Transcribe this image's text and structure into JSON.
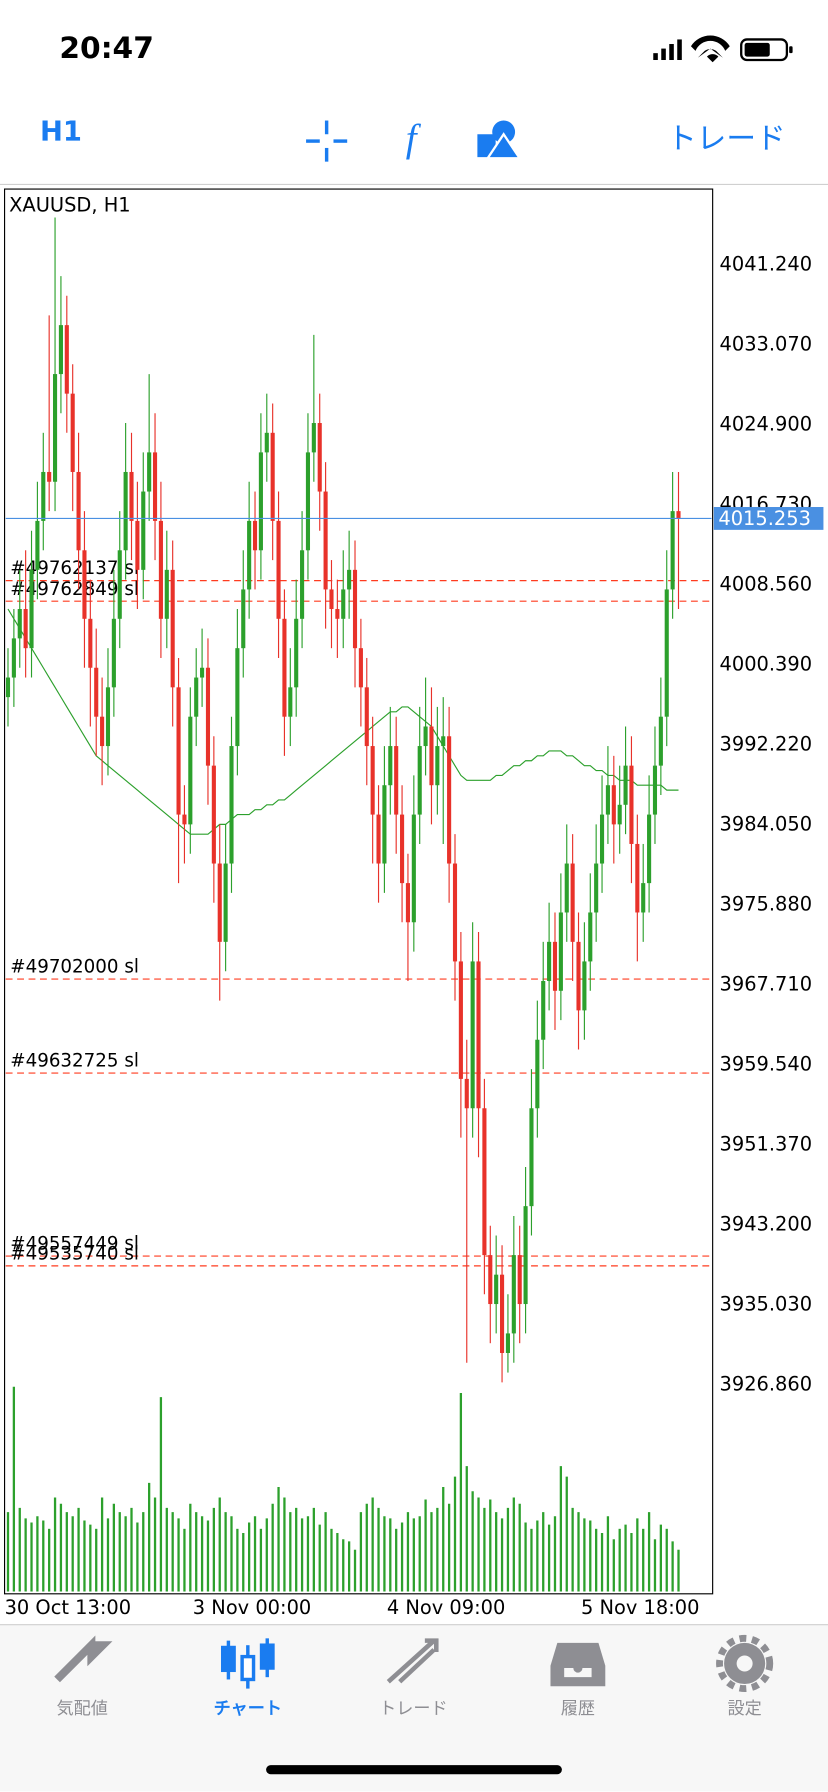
{
  "status_bar": {
    "time": "20:47"
  },
  "toolbar": {
    "timeframe": "H1",
    "trade": "トレード"
  },
  "chart_data": {
    "type": "candlestick",
    "title": "XAUUSD, H1",
    "up_color": "#2ca02c",
    "down_color": "#e8322a",
    "categories": [
      "30 Oct 13:00",
      null,
      null,
      null,
      null,
      null,
      null,
      null,
      null,
      null,
      null,
      null,
      null,
      null,
      null,
      null,
      null,
      null,
      null,
      null,
      null,
      null,
      null,
      null,
      null,
      null,
      null,
      null,
      null,
      null,
      null,
      null,
      "3 Nov 00:00",
      null,
      null,
      null,
      null,
      null,
      null,
      null,
      null,
      null,
      null,
      null,
      null,
      null,
      null,
      null,
      null,
      null,
      null,
      null,
      null,
      null,
      null,
      null,
      null,
      null,
      null,
      null,
      null,
      null,
      null,
      null,
      null,
      "4 Nov 09:00",
      null,
      null,
      null,
      null,
      null,
      null,
      null,
      null,
      null,
      null,
      null,
      null,
      null,
      null,
      null,
      null,
      null,
      null,
      null,
      null,
      null,
      null,
      null,
      null,
      null,
      null,
      null,
      null,
      null,
      null,
      null,
      null,
      "5 Nov 18:00",
      null,
      null,
      null,
      null,
      null,
      null,
      null,
      null,
      null,
      null,
      null,
      null,
      null,
      null,
      null,
      null
    ],
    "ohlc": [
      [
        3997,
        4002,
        3994,
        3999
      ],
      [
        3999,
        4006,
        3996,
        4003
      ],
      [
        4003,
        4010,
        4000,
        4006
      ],
      [
        4006,
        4012,
        3999,
        4002
      ],
      [
        4002,
        4014,
        3999,
        4010
      ],
      [
        4010,
        4019,
        4007,
        4015
      ],
      [
        4015,
        4024,
        4012,
        4020
      ],
      [
        4020,
        4036,
        4016,
        4019
      ],
      [
        4019,
        4046,
        4016,
        4030
      ],
      [
        4030,
        4040,
        4026,
        4035
      ],
      [
        4035,
        4038,
        4024,
        4028
      ],
      [
        4028,
        4031,
        4016,
        4020
      ],
      [
        4020,
        4024,
        4008,
        4012
      ],
      [
        4012,
        4016,
        4000,
        4005
      ],
      [
        4005,
        4009,
        3994,
        4000
      ],
      [
        4000,
        4004,
        3991,
        3995
      ],
      [
        3995,
        3999,
        3988,
        3992
      ],
      [
        3992,
        4002,
        3989,
        3998
      ],
      [
        3998,
        4010,
        3995,
        4005
      ],
      [
        4005,
        4016,
        4002,
        4012
      ],
      [
        4012,
        4025,
        4009,
        4020
      ],
      [
        4020,
        4024,
        4011,
        4015
      ],
      [
        4015,
        4019,
        4006,
        4010
      ],
      [
        4010,
        4022,
        4007,
        4018
      ],
      [
        4018,
        4030,
        4015,
        4022
      ],
      [
        4022,
        4026,
        4011,
        4015
      ],
      [
        4015,
        4019,
        4001,
        4005
      ],
      [
        4005,
        4014,
        4002,
        4010
      ],
      [
        4010,
        4013,
        3994,
        3998
      ],
      [
        3998,
        4001,
        3978,
        3985
      ],
      [
        3985,
        3988,
        3980,
        3984
      ],
      [
        3984,
        3998,
        3981,
        3995
      ],
      [
        3995,
        4002,
        3992,
        3999
      ],
      [
        3999,
        4004,
        3996,
        4000
      ],
      [
        4000,
        4003,
        3986,
        3990
      ],
      [
        3990,
        3993,
        3976,
        3980
      ],
      [
        3980,
        3984,
        3966,
        3972
      ],
      [
        3972,
        3984,
        3969,
        3980
      ],
      [
        3980,
        3995,
        3977,
        3992
      ],
      [
        3992,
        4006,
        3989,
        4002
      ],
      [
        4002,
        4012,
        3999,
        4008
      ],
      [
        4008,
        4019,
        4005,
        4015
      ],
      [
        4015,
        4018,
        4008,
        4012
      ],
      [
        4012,
        4026,
        4009,
        4022
      ],
      [
        4022,
        4028,
        4019,
        4024
      ],
      [
        4024,
        4027,
        4011,
        4015
      ],
      [
        4015,
        4018,
        4001,
        4005
      ],
      [
        4005,
        4008,
        3991,
        3995
      ],
      [
        3995,
        4002,
        3992,
        3998
      ],
      [
        3998,
        4009,
        3995,
        4005
      ],
      [
        4005,
        4016,
        4002,
        4012
      ],
      [
        4012,
        4026,
        4009,
        4022
      ],
      [
        4022,
        4034,
        4019,
        4025
      ],
      [
        4025,
        4028,
        4014,
        4018
      ],
      [
        4018,
        4021,
        4004,
        4008
      ],
      [
        4008,
        4011,
        4002,
        4006
      ],
      [
        4006,
        4009,
        4001,
        4005
      ],
      [
        4005,
        4012,
        4002,
        4008
      ],
      [
        4008,
        4014,
        4005,
        4010
      ],
      [
        4010,
        4013,
        3998,
        4002
      ],
      [
        4002,
        4005,
        3994,
        3998
      ],
      [
        3998,
        4001,
        3988,
        3992
      ],
      [
        3992,
        3995,
        3980,
        3985
      ],
      [
        3985,
        3988,
        3976,
        3980
      ],
      [
        3980,
        3992,
        3977,
        3988
      ],
      [
        3988,
        3996,
        3985,
        3992
      ],
      [
        3992,
        3995,
        3981,
        3985
      ],
      [
        3985,
        3988,
        3974,
        3978
      ],
      [
        3978,
        3981,
        3968,
        3974
      ],
      [
        3974,
        3989,
        3971,
        3985
      ],
      [
        3985,
        3996,
        3982,
        3992
      ],
      [
        3992,
        3999,
        3989,
        3994
      ],
      [
        3994,
        3998,
        3984,
        3988
      ],
      [
        3988,
        3996,
        3985,
        3992
      ],
      [
        3992,
        3997,
        3982,
        3993
      ],
      [
        3993,
        3996,
        3976,
        3980
      ],
      [
        3980,
        3983,
        3966,
        3970
      ],
      [
        3970,
        3973,
        3952,
        3958
      ],
      [
        3958,
        3962,
        3929,
        3955
      ],
      [
        3955,
        3974,
        3952,
        3970
      ],
      [
        3970,
        3973,
        3950,
        3955
      ],
      [
        3955,
        3958,
        3936,
        3940
      ],
      [
        3940,
        3943,
        3931,
        3935
      ],
      [
        3935,
        3942,
        3932,
        3938
      ],
      [
        3938,
        3941,
        3927,
        3930
      ],
      [
        3930,
        3936,
        3928,
        3932
      ],
      [
        3932,
        3944,
        3929,
        3940
      ],
      [
        3940,
        3943,
        3931,
        3935
      ],
      [
        3935,
        3949,
        3932,
        3945
      ],
      [
        3945,
        3959,
        3942,
        3955
      ],
      [
        3955,
        3966,
        3952,
        3962
      ],
      [
        3962,
        3972,
        3959,
        3968
      ],
      [
        3968,
        3976,
        3965,
        3972
      ],
      [
        3972,
        3975,
        3963,
        3967
      ],
      [
        3967,
        3979,
        3964,
        3975
      ],
      [
        3975,
        3984,
        3972,
        3980
      ],
      [
        3980,
        3983,
        3968,
        3972
      ],
      [
        3972,
        3975,
        3961,
        3965
      ],
      [
        3965,
        3974,
        3962,
        3970
      ],
      [
        3970,
        3979,
        3967,
        3975
      ],
      [
        3975,
        3984,
        3972,
        3980
      ],
      [
        3980,
        3989,
        3977,
        3985
      ],
      [
        3985,
        3992,
        3982,
        3988
      ],
      [
        3988,
        3991,
        3980,
        3984
      ],
      [
        3984,
        3990,
        3981,
        3986
      ],
      [
        3986,
        3994,
        3983,
        3990
      ],
      [
        3990,
        3993,
        3978,
        3982
      ],
      [
        3982,
        3985,
        3970,
        3975
      ],
      [
        3975,
        3982,
        3972,
        3978
      ],
      [
        3978,
        3989,
        3975,
        3985
      ],
      [
        3985,
        3994,
        3982,
        3990
      ],
      [
        3990,
        3999,
        3987,
        3995
      ],
      [
        3995,
        4012,
        3992,
        4008
      ],
      [
        4008,
        4020,
        4005,
        4016
      ],
      [
        4016,
        4020,
        4006,
        4015.253
      ]
    ],
    "ylim": [
      3905.4,
      4048.9
    ],
    "yticks": [
      {
        "value": 4041.24,
        "label": "4041.240"
      },
      {
        "value": 4033.07,
        "label": "4033.070"
      },
      {
        "value": 4024.9,
        "label": "4024.900"
      },
      {
        "value": 4016.73,
        "label": "4016.730"
      },
      {
        "value": 4008.56,
        "label": "4008.560"
      },
      {
        "value": 4000.39,
        "label": "4000.390"
      },
      {
        "value": 3992.22,
        "label": "3992.220"
      },
      {
        "value": 3984.05,
        "label": "3984.050"
      },
      {
        "value": 3975.88,
        "label": "3975.880"
      },
      {
        "value": 3967.71,
        "label": "3967.710"
      },
      {
        "value": 3959.54,
        "label": "3959.540"
      },
      {
        "value": 3951.37,
        "label": "3951.370"
      },
      {
        "value": 3943.2,
        "label": "3943.200"
      },
      {
        "value": 3935.03,
        "label": "3935.030"
      },
      {
        "value": 3926.86,
        "label": "3926.860"
      }
    ],
    "current_price": 4015.253,
    "current_color": "#4a90e2",
    "ma": {
      "color": "#2ca02c",
      "values": [
        4006,
        4005,
        4004,
        4003,
        4002,
        4001,
        4000,
        3999,
        3998,
        3997,
        3996,
        3995,
        3994,
        3993,
        3992,
        3991,
        3990.5,
        3990,
        3989.5,
        3989,
        3988.5,
        3988,
        3987.5,
        3987,
        3986.5,
        3986,
        3985.5,
        3985,
        3984.5,
        3984,
        3983.5,
        3983,
        3983,
        3983,
        3983,
        3983.5,
        3984,
        3984,
        3984.5,
        3985,
        3985,
        3985,
        3985.5,
        3985.5,
        3986,
        3986,
        3986.5,
        3986.5,
        3987,
        3987.5,
        3988,
        3988.5,
        3989,
        3989.5,
        3990,
        3990.5,
        3991,
        3991.5,
        3992,
        3992.5,
        3993,
        3993.5,
        3994,
        3994.5,
        3995,
        3995.5,
        3995.5,
        3996,
        3996,
        3995.5,
        3995,
        3994.5,
        3994,
        3993,
        3992,
        3991,
        3990,
        3989,
        3988.5,
        3988.5,
        3988.5,
        3988.5,
        3988.5,
        3989,
        3989,
        3989.5,
        3990,
        3990,
        3990.5,
        3990.5,
        3991,
        3991,
        3991.5,
        3991.5,
        3991.5,
        3991,
        3991,
        3990.5,
        3990,
        3990,
        3989.5,
        3989.5,
        3989,
        3989,
        3988.5,
        3988.5,
        3988.5,
        3988,
        3988,
        3988,
        3988,
        3988,
        3987.5,
        3987.5,
        3987.5
      ]
    },
    "volume": {
      "color": "#2ca02c",
      "ylim": [
        0,
        100
      ],
      "values": [
        38,
        98,
        40,
        35,
        33,
        36,
        34,
        30,
        45,
        42,
        38,
        36,
        40,
        34,
        32,
        30,
        45,
        35,
        42,
        38,
        36,
        40,
        33,
        38,
        52,
        45,
        93,
        40,
        38,
        35,
        30,
        42,
        38,
        36,
        34,
        40,
        45,
        38,
        36,
        30,
        28,
        33,
        36,
        30,
        35,
        42,
        50,
        45,
        38,
        40,
        35,
        36,
        40,
        32,
        38,
        30,
        28,
        25,
        24,
        20,
        38,
        42,
        45,
        40,
        36,
        35,
        30,
        33,
        38,
        35,
        36,
        44,
        38,
        40,
        50,
        42,
        55,
        95,
        60,
        48,
        45,
        40,
        44,
        38,
        35,
        40,
        45,
        42,
        33,
        30,
        34,
        38,
        32,
        36,
        60,
        55,
        40,
        38,
        35,
        34,
        30,
        28,
        36,
        25,
        30,
        32,
        28,
        35,
        30,
        38,
        25,
        32,
        30,
        24,
        20
      ]
    },
    "order_color": "#ff3b1f",
    "orders": [
      {
        "price": 4008.9,
        "label": "#49762137 sl"
      },
      {
        "price": 4006.8,
        "label": "#49762849 sl"
      },
      {
        "price": 3968.2,
        "label": "#49702000 sl"
      },
      {
        "price": 3958.6,
        "label": "#49632725 sl"
      },
      {
        "price": 3939.9,
        "label": "#49557449 sl"
      },
      {
        "price": 3938.9,
        "label": "#49535740 sl"
      }
    ]
  },
  "tab_bar": {
    "tabs": [
      {
        "label": "気配値",
        "active": false
      },
      {
        "label": "チャート",
        "active": true
      },
      {
        "label": "トレード",
        "active": false
      },
      {
        "label": "履歴",
        "active": false
      },
      {
        "label": "設定",
        "active": false
      }
    ]
  }
}
